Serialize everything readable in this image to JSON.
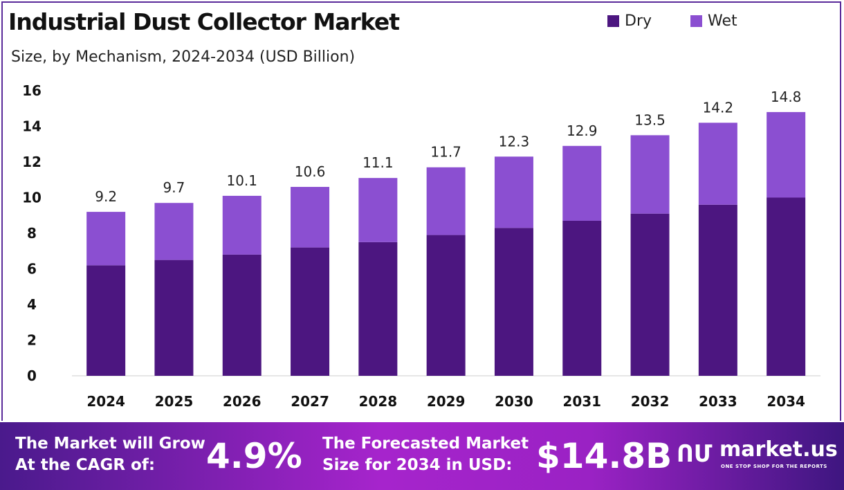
{
  "title": "Industrial Dust Collector Market",
  "subtitle": "Size, by Mechanism, 2024-2034 (USD Billion)",
  "colors": {
    "dry": "#4c1680",
    "wet": "#8b4fd1"
  },
  "chart_data": {
    "type": "bar",
    "stacked": true,
    "categories": [
      "2024",
      "2025",
      "2026",
      "2027",
      "2028",
      "2029",
      "2030",
      "2031",
      "2032",
      "2033",
      "2034"
    ],
    "series": [
      {
        "name": "Dry",
        "values": [
          6.2,
          6.5,
          6.8,
          7.2,
          7.5,
          7.9,
          8.3,
          8.7,
          9.1,
          9.6,
          10.0
        ]
      },
      {
        "name": "Wet",
        "values": [
          3.0,
          3.2,
          3.3,
          3.4,
          3.6,
          3.8,
          4.0,
          4.2,
          4.4,
          4.6,
          4.8
        ]
      }
    ],
    "totals": [
      "9.2",
      "9.7",
      "10.1",
      "10.6",
      "11.1",
      "11.7",
      "12.3",
      "12.9",
      "13.5",
      "14.2",
      "14.8"
    ],
    "ylim": [
      0,
      16
    ],
    "yticks": [
      0,
      2,
      4,
      6,
      8,
      10,
      12,
      14,
      16
    ],
    "legend": "top-right",
    "grid": false
  },
  "footer": {
    "cagr_label_1": "The Market will Grow",
    "cagr_label_2": "At the CAGR of:",
    "cagr_value": "4.9%",
    "forecast_label_1": "The Forecasted Market",
    "forecast_label_2": "Size for 2034 in USD:",
    "forecast_value": "$14.8B",
    "brand": "market.us",
    "brand_tagline": "ONE STOP SHOP FOR THE REPORTS"
  }
}
